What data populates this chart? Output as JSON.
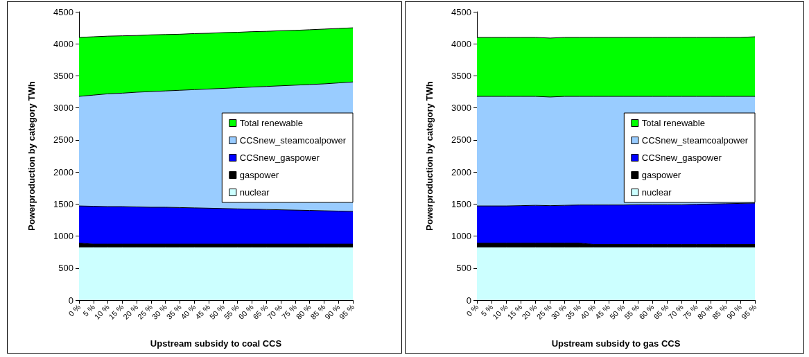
{
  "chart_data": [
    {
      "type": "area",
      "stacked": true,
      "xlabel": "Upstream subsidy to coal CCS",
      "ylabel": "Powerproduction by category TWh",
      "categories": [
        "0 %",
        "5 %",
        "10 %",
        "15 %",
        "20 %",
        "25 %",
        "30 %",
        "35 %",
        "40 %",
        "45 %",
        "50 %",
        "55 %",
        "60 %",
        "65 %",
        "70 %",
        "75 %",
        "80 %",
        "85 %",
        "90 %",
        "95 %"
      ],
      "ylim": [
        0,
        4500
      ],
      "yticks": [
        0,
        500,
        1000,
        1500,
        2000,
        2500,
        3000,
        3500,
        4000,
        4500
      ],
      "grid": false,
      "legend": "right",
      "marker": "none",
      "series": [
        {
          "name": "nuclear",
          "color": "#ccffff",
          "values": [
            830,
            830,
            830,
            830,
            830,
            830,
            830,
            830,
            830,
            830,
            830,
            830,
            830,
            830,
            830,
            830,
            830,
            830,
            830,
            830
          ]
        },
        {
          "name": "gaspower",
          "color": "#000000",
          "values": [
            60,
            45,
            45,
            45,
            45,
            45,
            45,
            45,
            45,
            45,
            45,
            45,
            45,
            45,
            45,
            45,
            45,
            45,
            45,
            45
          ]
        },
        {
          "name": "CCSnew_gaspower",
          "color": "#0000ff",
          "values": [
            580,
            590,
            585,
            585,
            580,
            575,
            575,
            570,
            565,
            560,
            555,
            550,
            545,
            540,
            535,
            530,
            525,
            520,
            515,
            510
          ]
        },
        {
          "name": "CCSnew_steamcoalpower",
          "color": "#99ccff",
          "values": [
            1710,
            1735,
            1760,
            1770,
            1790,
            1805,
            1815,
            1830,
            1845,
            1860,
            1875,
            1890,
            1905,
            1920,
            1935,
            1950,
            1965,
            1980,
            2000,
            2020
          ]
        },
        {
          "name": "Total renewable",
          "color": "#00ff00",
          "values": [
            920,
            910,
            900,
            895,
            885,
            885,
            880,
            875,
            875,
            870,
            870,
            865,
            865,
            860,
            860,
            855,
            855,
            855,
            850,
            845
          ]
        }
      ]
    },
    {
      "type": "area",
      "stacked": true,
      "xlabel": "Upstream subsidy to gas CCS",
      "ylabel": "Powerproduction by category TWh",
      "categories": [
        "0 %",
        "5 %",
        "10 %",
        "15 %",
        "20 %",
        "25 %",
        "30 %",
        "35 %",
        "40 %",
        "45 %",
        "50 %",
        "55 %",
        "60 %",
        "65 %",
        "70 %",
        "75 %",
        "80 %",
        "85 %",
        "90 %",
        "95 %"
      ],
      "ylim": [
        0,
        4500
      ],
      "yticks": [
        0,
        500,
        1000,
        1500,
        2000,
        2500,
        3000,
        3500,
        4000,
        4500
      ],
      "grid": false,
      "legend": "right",
      "marker": "none",
      "series": [
        {
          "name": "nuclear",
          "color": "#ccffff",
          "values": [
            830,
            830,
            830,
            830,
            830,
            830,
            830,
            830,
            830,
            830,
            830,
            830,
            830,
            830,
            830,
            830,
            830,
            830,
            830,
            830
          ]
        },
        {
          "name": "gaspower",
          "color": "#000000",
          "values": [
            60,
            60,
            60,
            60,
            60,
            60,
            60,
            60,
            40,
            40,
            40,
            40,
            40,
            40,
            40,
            40,
            40,
            40,
            40,
            40
          ]
        },
        {
          "name": "CCSnew_gaspower",
          "color": "#0000ff",
          "values": [
            580,
            580,
            580,
            585,
            590,
            585,
            590,
            595,
            615,
            615,
            615,
            620,
            620,
            620,
            620,
            625,
            630,
            635,
            640,
            645
          ]
        },
        {
          "name": "CCSnew_steamcoalpower",
          "color": "#99ccff",
          "values": [
            1710,
            1710,
            1710,
            1705,
            1700,
            1695,
            1700,
            1695,
            1695,
            1695,
            1695,
            1690,
            1690,
            1690,
            1690,
            1685,
            1680,
            1675,
            1670,
            1665
          ]
        },
        {
          "name": "Total renewable",
          "color": "#00ff00",
          "values": [
            920,
            920,
            920,
            920,
            920,
            920,
            920,
            920,
            920,
            920,
            920,
            920,
            920,
            920,
            920,
            920,
            920,
            920,
            920,
            930
          ]
        }
      ]
    }
  ]
}
